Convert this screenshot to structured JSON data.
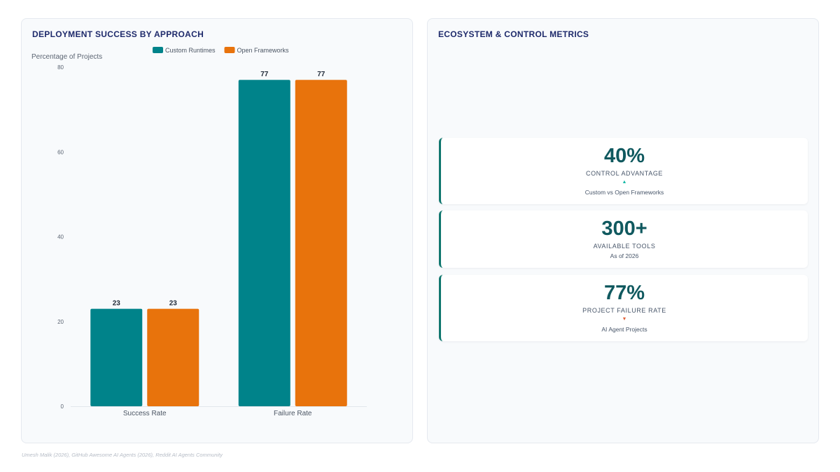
{
  "left_panel": {
    "title": "DEPLOYMENT SUCCESS BY APPROACH"
  },
  "right_panel": {
    "title": "ECOSYSTEM & CONTROL METRICS",
    "metrics": [
      {
        "value": "40%",
        "label": "CONTROL ADVANTAGE",
        "trend": "up",
        "trend_glyph": "▲",
        "trend_color": "#14b8a6",
        "sub": "Custom vs Open Frameworks"
      },
      {
        "value": "300+",
        "label": "AVAILABLE TOOLS",
        "trend": "none",
        "trend_glyph": "",
        "trend_color": "",
        "sub": "As of 2026"
      },
      {
        "value": "77%",
        "label": "PROJECT FAILURE RATE",
        "trend": "down",
        "trend_glyph": "▼",
        "trend_color": "#e2623a",
        "sub": "AI Agent Projects"
      }
    ]
  },
  "chart_data": {
    "type": "bar",
    "categories": [
      "Success Rate",
      "Failure Rate"
    ],
    "series": [
      {
        "name": "Custom Runtimes",
        "values": [
          23,
          77
        ],
        "color": "#00838a"
      },
      {
        "name": "Open Frameworks",
        "values": [
          23,
          77
        ],
        "color": "#e8730c"
      }
    ],
    "ylabel": "Percentage of Projects",
    "xlabel": "",
    "ylim": [
      0,
      80
    ],
    "yticks": [
      0,
      20,
      40,
      60,
      80
    ],
    "legend_position": "top-center",
    "data_labels": true,
    "grid": false
  },
  "source": "Umesh Malik (2026), GitHub Awesome AI Agents (2026), Reddit AI Agents Community"
}
